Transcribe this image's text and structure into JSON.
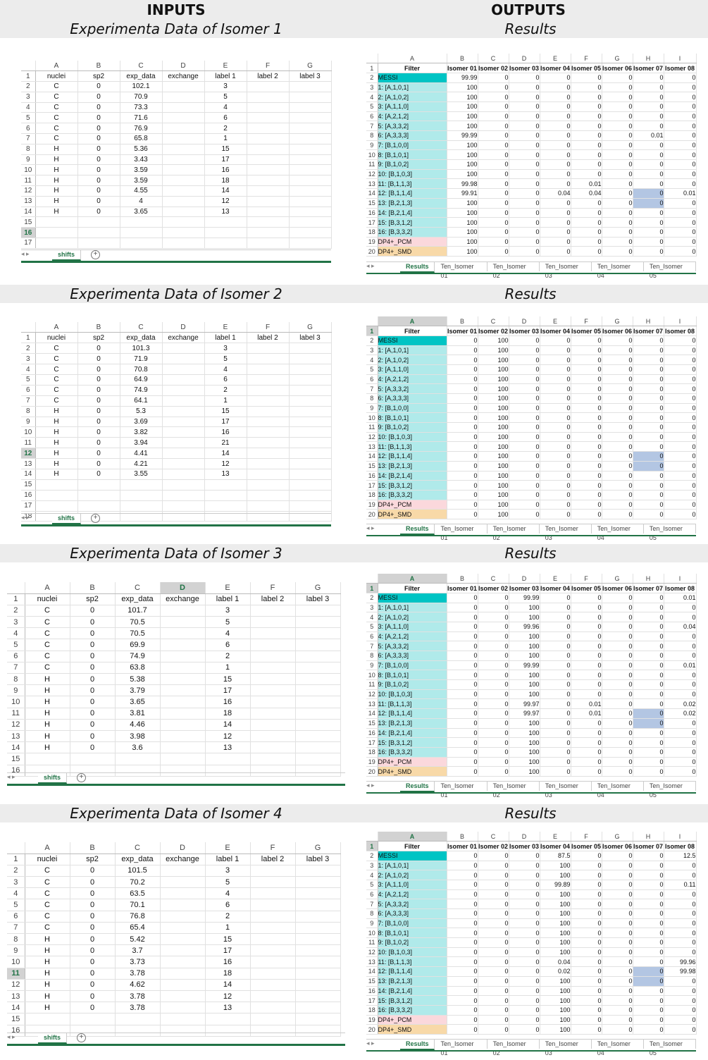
{
  "header": {
    "inputs": "INPUTS",
    "outputs": "OUTPUTS"
  },
  "columns": [
    "A",
    "B",
    "C",
    "D",
    "E",
    "F",
    "G"
  ],
  "headers": [
    "nuclei",
    "sp2",
    "exp_data",
    "exchange",
    "label 1",
    "label 2",
    "label 3"
  ],
  "result_columns": [
    "A",
    "B",
    "C",
    "D",
    "E",
    "F",
    "G",
    "H",
    "I"
  ],
  "result_headers": [
    "Filter",
    "Isomer 01",
    "Isomer 02",
    "Isomer 03",
    "Isomer 04",
    "Isomer 05",
    "Isomer 06",
    "Isomer 07",
    "Isomer 08"
  ],
  "filters": [
    "MESSI",
    "1: [A,1,0,1]",
    "2: [A,1,0,2]",
    "3: [A,1,1,0]",
    "4: [A,2,1,2]",
    "5: [A,3,3,2]",
    "6: [A,3,3,3]",
    "7: [B,1,0,0]",
    "8: [B,1,0,1]",
    "9: [B,1,0,2]",
    "10: [B,1,0,3]",
    "11: [B,1,1,3]",
    "12: [B,1,1,4]",
    "13: [B,2,1,3]",
    "14: [B,2,1,4]",
    "15: [B,3,1,2]",
    "16: [B,3,3,2]",
    "DP4+_PCM",
    "DP4+_SMD"
  ],
  "sheet_tab": "shifts",
  "result_tabs": [
    "Results",
    "Ten_Isomer 01",
    "Ten_Isomer 02",
    "Ten_Isomer 03",
    "Ten_Isomer 04",
    "Ten_Isomer 05"
  ],
  "results_title": "Results",
  "sections": [
    {
      "title": "Experimenta Data of Isomer 1",
      "rows": [
        [
          "C",
          "0",
          "102.1",
          "",
          "3",
          "",
          ""
        ],
        [
          "C",
          "0",
          "70.9",
          "",
          "5",
          "",
          ""
        ],
        [
          "C",
          "0",
          "73.3",
          "",
          "4",
          "",
          ""
        ],
        [
          "C",
          "0",
          "71.6",
          "",
          "6",
          "",
          ""
        ],
        [
          "C",
          "0",
          "76.9",
          "",
          "2",
          "",
          ""
        ],
        [
          "C",
          "0",
          "65.8",
          "",
          "1",
          "",
          ""
        ],
        [
          "H",
          "0",
          "5.36",
          "",
          "15",
          "",
          ""
        ],
        [
          "H",
          "0",
          "3.43",
          "",
          "17",
          "",
          ""
        ],
        [
          "H",
          "0",
          "3.59",
          "",
          "16",
          "",
          ""
        ],
        [
          "H",
          "0",
          "3.59",
          "",
          "18",
          "",
          ""
        ],
        [
          "H",
          "0",
          "4.55",
          "",
          "14",
          "",
          ""
        ],
        [
          "H",
          "0",
          "4",
          "",
          "12",
          "",
          ""
        ],
        [
          "H",
          "0",
          "3.65",
          "",
          "13",
          "",
          ""
        ]
      ],
      "results": [
        [
          "99.99",
          "0",
          "0",
          "0",
          "0",
          "0",
          "0",
          "0"
        ],
        [
          "100",
          "0",
          "0",
          "0",
          "0",
          "0",
          "0",
          "0"
        ],
        [
          "100",
          "0",
          "0",
          "0",
          "0",
          "0",
          "0",
          "0"
        ],
        [
          "100",
          "0",
          "0",
          "0",
          "0",
          "0",
          "0",
          "0"
        ],
        [
          "100",
          "0",
          "0",
          "0",
          "0",
          "0",
          "0",
          "0"
        ],
        [
          "100",
          "0",
          "0",
          "0",
          "0",
          "0",
          "0",
          "0"
        ],
        [
          "99.99",
          "0",
          "0",
          "0",
          "0",
          "0",
          "0.01",
          "0"
        ],
        [
          "100",
          "0",
          "0",
          "0",
          "0",
          "0",
          "0",
          "0"
        ],
        [
          "100",
          "0",
          "0",
          "0",
          "0",
          "0",
          "0",
          "0"
        ],
        [
          "100",
          "0",
          "0",
          "0",
          "0",
          "0",
          "0",
          "0"
        ],
        [
          "100",
          "0",
          "0",
          "0",
          "0",
          "0",
          "0",
          "0"
        ],
        [
          "99.98",
          "0",
          "0",
          "0",
          "0.01",
          "0",
          "0",
          "0"
        ],
        [
          "99.91",
          "0",
          "0",
          "0.04",
          "0.04",
          "0",
          "0",
          "0.01"
        ],
        [
          "100",
          "0",
          "0",
          "0",
          "0",
          "0",
          "0",
          "0"
        ],
        [
          "100",
          "0",
          "0",
          "0",
          "0",
          "0",
          "0",
          "0"
        ],
        [
          "100",
          "0",
          "0",
          "0",
          "0",
          "0",
          "0",
          "0"
        ],
        [
          "100",
          "0",
          "0",
          "0",
          "0",
          "0",
          "0",
          "0"
        ],
        [
          "100",
          "0",
          "0",
          "0",
          "0",
          "0",
          "0",
          "0"
        ],
        [
          "100",
          "0",
          "0",
          "0",
          "0",
          "0",
          "0",
          "0"
        ]
      ]
    },
    {
      "title": "Experimenta Data of Isomer 2",
      "rows": [
        [
          "C",
          "0",
          "101.3",
          "",
          "3",
          "",
          ""
        ],
        [
          "C",
          "0",
          "71.9",
          "",
          "5",
          "",
          ""
        ],
        [
          "C",
          "0",
          "70.8",
          "",
          "4",
          "",
          ""
        ],
        [
          "C",
          "0",
          "64.9",
          "",
          "6",
          "",
          ""
        ],
        [
          "C",
          "0",
          "74.9",
          "",
          "2",
          "",
          ""
        ],
        [
          "C",
          "0",
          "64.1",
          "",
          "1",
          "",
          ""
        ],
        [
          "H",
          "0",
          "5.3",
          "",
          "15",
          "",
          ""
        ],
        [
          "H",
          "0",
          "3.69",
          "",
          "17",
          "",
          ""
        ],
        [
          "H",
          "0",
          "3.82",
          "",
          "16",
          "",
          ""
        ],
        [
          "H",
          "0",
          "3.94",
          "",
          "21",
          "",
          ""
        ],
        [
          "H",
          "0",
          "4.41",
          "",
          "14",
          "",
          ""
        ],
        [
          "H",
          "0",
          "4.21",
          "",
          "12",
          "",
          ""
        ],
        [
          "H",
          "0",
          "3.55",
          "",
          "13",
          "",
          ""
        ]
      ],
      "results": [
        [
          "0",
          "100",
          "0",
          "0",
          "0",
          "0",
          "0",
          "0"
        ],
        [
          "0",
          "100",
          "0",
          "0",
          "0",
          "0",
          "0",
          "0"
        ],
        [
          "0",
          "100",
          "0",
          "0",
          "0",
          "0",
          "0",
          "0"
        ],
        [
          "0",
          "100",
          "0",
          "0",
          "0",
          "0",
          "0",
          "0"
        ],
        [
          "0",
          "100",
          "0",
          "0",
          "0",
          "0",
          "0",
          "0"
        ],
        [
          "0",
          "100",
          "0",
          "0",
          "0",
          "0",
          "0",
          "0"
        ],
        [
          "0",
          "100",
          "0",
          "0",
          "0",
          "0",
          "0",
          "0"
        ],
        [
          "0",
          "100",
          "0",
          "0",
          "0",
          "0",
          "0",
          "0"
        ],
        [
          "0",
          "100",
          "0",
          "0",
          "0",
          "0",
          "0",
          "0"
        ],
        [
          "0",
          "100",
          "0",
          "0",
          "0",
          "0",
          "0",
          "0"
        ],
        [
          "0",
          "100",
          "0",
          "0",
          "0",
          "0",
          "0",
          "0"
        ],
        [
          "0",
          "100",
          "0",
          "0",
          "0",
          "0",
          "0",
          "0"
        ],
        [
          "0",
          "100",
          "0",
          "0",
          "0",
          "0",
          "0",
          "0"
        ],
        [
          "0",
          "100",
          "0",
          "0",
          "0",
          "0",
          "0",
          "0"
        ],
        [
          "0",
          "100",
          "0",
          "0",
          "0",
          "0",
          "0",
          "0"
        ],
        [
          "0",
          "100",
          "0",
          "0",
          "0",
          "0",
          "0",
          "0"
        ],
        [
          "0",
          "100",
          "0",
          "0",
          "0",
          "0",
          "0",
          "0"
        ],
        [
          "0",
          "100",
          "0",
          "0",
          "0",
          "0",
          "0",
          "0"
        ],
        [
          "0",
          "100",
          "0",
          "0",
          "0",
          "0",
          "0",
          "0"
        ]
      ]
    },
    {
      "title": "Experimenta Data of Isomer 3",
      "rows": [
        [
          "C",
          "0",
          "101.7",
          "",
          "3",
          "",
          ""
        ],
        [
          "C",
          "0",
          "70.5",
          "",
          "5",
          "",
          ""
        ],
        [
          "C",
          "0",
          "70.5",
          "",
          "4",
          "",
          ""
        ],
        [
          "C",
          "0",
          "69.9",
          "",
          "6",
          "",
          ""
        ],
        [
          "C",
          "0",
          "74.9",
          "",
          "2",
          "",
          ""
        ],
        [
          "C",
          "0",
          "63.8",
          "",
          "1",
          "",
          ""
        ],
        [
          "H",
          "0",
          "5.38",
          "",
          "15",
          "",
          ""
        ],
        [
          "H",
          "0",
          "3.79",
          "",
          "17",
          "",
          ""
        ],
        [
          "H",
          "0",
          "3.65",
          "",
          "16",
          "",
          ""
        ],
        [
          "H",
          "0",
          "3.81",
          "",
          "18",
          "",
          ""
        ],
        [
          "H",
          "0",
          "4.46",
          "",
          "14",
          "",
          ""
        ],
        [
          "H",
          "0",
          "3.98",
          "",
          "12",
          "",
          ""
        ],
        [
          "H",
          "0",
          "3.6",
          "",
          "13",
          "",
          ""
        ]
      ],
      "results": [
        [
          "0",
          "0",
          "99.99",
          "0",
          "0",
          "0",
          "0",
          "0.01"
        ],
        [
          "0",
          "0",
          "100",
          "0",
          "0",
          "0",
          "0",
          "0"
        ],
        [
          "0",
          "0",
          "100",
          "0",
          "0",
          "0",
          "0",
          "0"
        ],
        [
          "0",
          "0",
          "99.96",
          "0",
          "0",
          "0",
          "0",
          "0.04"
        ],
        [
          "0",
          "0",
          "100",
          "0",
          "0",
          "0",
          "0",
          "0"
        ],
        [
          "0",
          "0",
          "100",
          "0",
          "0",
          "0",
          "0",
          "0"
        ],
        [
          "0",
          "0",
          "100",
          "0",
          "0",
          "0",
          "0",
          "0"
        ],
        [
          "0",
          "0",
          "99.99",
          "0",
          "0",
          "0",
          "0",
          "0.01"
        ],
        [
          "0",
          "0",
          "100",
          "0",
          "0",
          "0",
          "0",
          "0"
        ],
        [
          "0",
          "0",
          "100",
          "0",
          "0",
          "0",
          "0",
          "0"
        ],
        [
          "0",
          "0",
          "100",
          "0",
          "0",
          "0",
          "0",
          "0"
        ],
        [
          "0",
          "0",
          "99.97",
          "0",
          "0.01",
          "0",
          "0",
          "0.02"
        ],
        [
          "0",
          "0",
          "99.97",
          "0",
          "0.01",
          "0",
          "0",
          "0.02"
        ],
        [
          "0",
          "0",
          "100",
          "0",
          "0",
          "0",
          "0",
          "0"
        ],
        [
          "0",
          "0",
          "100",
          "0",
          "0",
          "0",
          "0",
          "0"
        ],
        [
          "0",
          "0",
          "100",
          "0",
          "0",
          "0",
          "0",
          "0"
        ],
        [
          "0",
          "0",
          "100",
          "0",
          "0",
          "0",
          "0",
          "0"
        ],
        [
          "0",
          "0",
          "100",
          "0",
          "0",
          "0",
          "0",
          "0"
        ],
        [
          "0",
          "0",
          "100",
          "0",
          "0",
          "0",
          "0",
          "0"
        ]
      ]
    },
    {
      "title": "Experimenta Data of Isomer 4",
      "rows": [
        [
          "C",
          "0",
          "101.5",
          "",
          "3",
          "",
          ""
        ],
        [
          "C",
          "0",
          "70.2",
          "",
          "5",
          "",
          ""
        ],
        [
          "C",
          "0",
          "63.5",
          "",
          "4",
          "",
          ""
        ],
        [
          "C",
          "0",
          "70.1",
          "",
          "6",
          "",
          ""
        ],
        [
          "C",
          "0",
          "76.8",
          "",
          "2",
          "",
          ""
        ],
        [
          "C",
          "0",
          "65.4",
          "",
          "1",
          "",
          ""
        ],
        [
          "H",
          "0",
          "5.42",
          "",
          "15",
          "",
          ""
        ],
        [
          "H",
          "0",
          "3.7",
          "",
          "17",
          "",
          ""
        ],
        [
          "H",
          "0",
          "3.73",
          "",
          "16",
          "",
          ""
        ],
        [
          "H",
          "0",
          "3.78",
          "",
          "18",
          "",
          ""
        ],
        [
          "H",
          "0",
          "4.62",
          "",
          "14",
          "",
          ""
        ],
        [
          "H",
          "0",
          "3.78",
          "",
          "12",
          "",
          ""
        ],
        [
          "H",
          "0",
          "3.78",
          "",
          "13",
          "",
          ""
        ]
      ],
      "results": [
        [
          "0",
          "0",
          "0",
          "87.5",
          "0",
          "0",
          "0",
          "12.5"
        ],
        [
          "0",
          "0",
          "0",
          "100",
          "0",
          "0",
          "0",
          "0"
        ],
        [
          "0",
          "0",
          "0",
          "100",
          "0",
          "0",
          "0",
          "0"
        ],
        [
          "0",
          "0",
          "0",
          "99.89",
          "0",
          "0",
          "0",
          "0.11"
        ],
        [
          "0",
          "0",
          "0",
          "100",
          "0",
          "0",
          "0",
          "0"
        ],
        [
          "0",
          "0",
          "0",
          "100",
          "0",
          "0",
          "0",
          "0"
        ],
        [
          "0",
          "0",
          "0",
          "100",
          "0",
          "0",
          "0",
          "0"
        ],
        [
          "0",
          "0",
          "0",
          "100",
          "0",
          "0",
          "0",
          "0"
        ],
        [
          "0",
          "0",
          "0",
          "100",
          "0",
          "0",
          "0",
          "0"
        ],
        [
          "0",
          "0",
          "0",
          "100",
          "0",
          "0",
          "0",
          "0"
        ],
        [
          "0",
          "0",
          "0",
          "100",
          "0",
          "0",
          "0",
          "0"
        ],
        [
          "0",
          "0",
          "0",
          "0.04",
          "0",
          "0",
          "0",
          "99.96"
        ],
        [
          "0",
          "0",
          "0",
          "0.02",
          "0",
          "0",
          "0",
          "99.98"
        ],
        [
          "0",
          "0",
          "0",
          "100",
          "0",
          "0",
          "0",
          "0"
        ],
        [
          "0",
          "0",
          "0",
          "100",
          "0",
          "0",
          "0",
          "0"
        ],
        [
          "0",
          "0",
          "0",
          "100",
          "0",
          "0",
          "0",
          "0"
        ],
        [
          "0",
          "0",
          "0",
          "100",
          "0",
          "0",
          "0",
          "0"
        ],
        [
          "0",
          "0",
          "0",
          "100",
          "0",
          "0",
          "0",
          "0"
        ],
        [
          "0",
          "0",
          "0",
          "100",
          "0",
          "0",
          "0",
          "0"
        ]
      ]
    }
  ]
}
